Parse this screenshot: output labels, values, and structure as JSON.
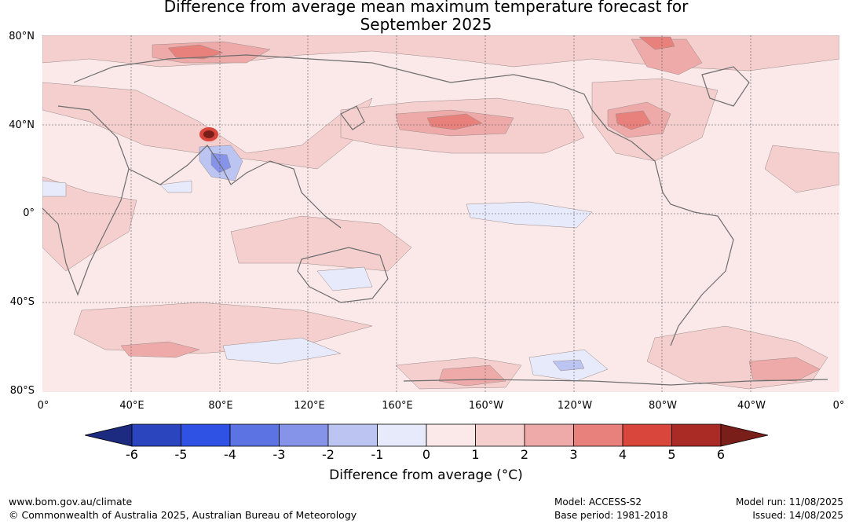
{
  "title": {
    "line1": "Difference from average mean maximum temperature forecast for",
    "line2": "September 2025"
  },
  "map": {
    "lat_labels": [
      "80°N",
      "40°N",
      "0°",
      "40°S",
      "80°S"
    ],
    "lon_labels": [
      "0°",
      "40°E",
      "80°E",
      "120°E",
      "160°E",
      "160°W",
      "120°W",
      "80°W",
      "40°W",
      "0°"
    ]
  },
  "colorbar": {
    "ticks": [
      "-6",
      "-5",
      "-4",
      "-3",
      "-2",
      "-1",
      "0",
      "1",
      "2",
      "3",
      "4",
      "5",
      "6"
    ],
    "colors": [
      "#1c2a7f",
      "#2a45bd",
      "#3052e4",
      "#5b73e3",
      "#8594e9",
      "#bcc4f1",
      "#e7eafa",
      "#fbe8e8",
      "#f4cfce",
      "#edaaa8",
      "#e8817c",
      "#d9473c",
      "#aa2a26",
      "#7a1e1a"
    ],
    "title": "Difference from average (°C)"
  },
  "footer": {
    "website": "www.bom.gov.au/climate",
    "copyright": "© Commonwealth of Australia 2025, Australian Bureau of Meteorology",
    "model": "Model: ACCESS-S2",
    "base_period": "Base period: 1981-2018",
    "model_run": "Model run: 11/08/2025",
    "issued": "Issued: 14/08/2025"
  }
}
